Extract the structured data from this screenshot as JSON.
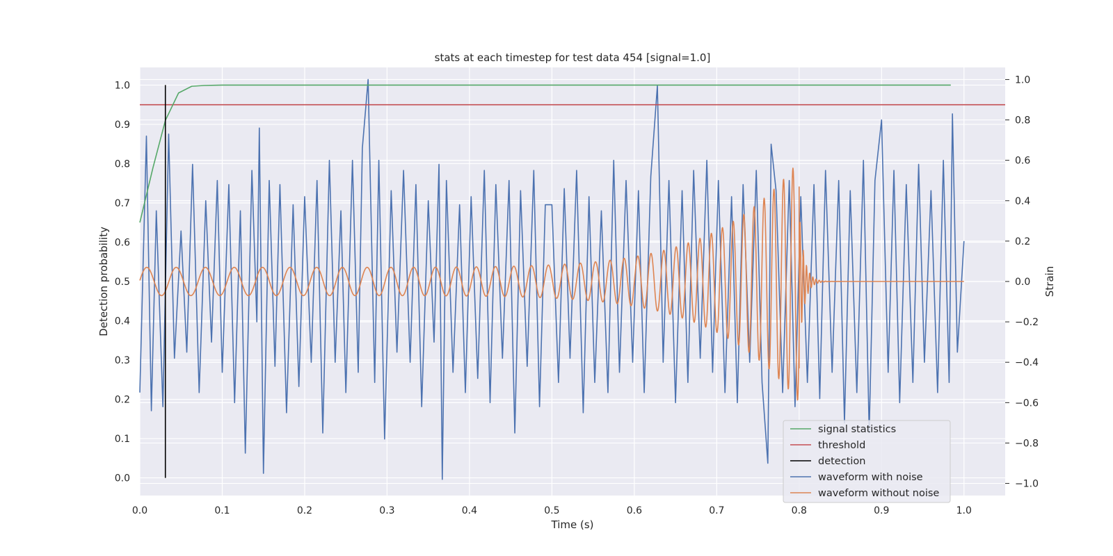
{
  "chart_data": {
    "type": "line",
    "title": "stats at each timestep for test data 454 [signal=1.0]",
    "xlabel": "Time (s)",
    "ylabel_left": "Detection probability",
    "ylabel_right": "Strain",
    "xlim": [
      0.0,
      1.05
    ],
    "ylim_left": [
      -0.045,
      1.045
    ],
    "ylim_right": [
      -1.06,
      1.06
    ],
    "x_ticks": [
      0.0,
      0.1,
      0.2,
      0.3,
      0.4,
      0.5,
      0.6,
      0.7,
      0.8,
      0.9,
      1.0
    ],
    "x_tick_labels": [
      "0.0",
      "0.1",
      "0.2",
      "0.3",
      "0.4",
      "0.5",
      "0.6",
      "0.7",
      "0.8",
      "0.9",
      "1.0"
    ],
    "y_left_ticks": [
      0.0,
      0.1,
      0.2,
      0.3,
      0.4,
      0.5,
      0.6,
      0.7,
      0.8,
      0.9,
      1.0
    ],
    "y_left_tick_labels": [
      "0.0",
      "0.1",
      "0.2",
      "0.3",
      "0.4",
      "0.5",
      "0.6",
      "0.7",
      "0.8",
      "0.9",
      "1.0"
    ],
    "y_right_ticks": [
      -1.0,
      -0.8,
      -0.6,
      -0.4,
      -0.2,
      0.0,
      0.2,
      0.4,
      0.6,
      0.8,
      1.0
    ],
    "y_right_tick_labels": [
      "−1.0",
      "−0.8",
      "−0.6",
      "−0.4",
      "−0.2",
      "0.0",
      "0.2",
      "0.4",
      "0.6",
      "0.8",
      "1.0"
    ],
    "grid": true,
    "legend_position": "lower right",
    "series": [
      {
        "name": "signal statistics",
        "axis": "left",
        "color": "#55a868",
        "x": [
          0.0,
          0.016,
          0.031,
          0.047,
          0.063,
          0.078,
          0.1,
          0.2,
          0.3,
          0.4,
          0.5,
          0.6,
          0.7,
          0.8,
          0.9,
          0.984
        ],
        "y": [
          0.65,
          0.79,
          0.91,
          0.98,
          0.997,
          0.999,
          1.0,
          1.0,
          1.0,
          1.0,
          1.0,
          1.0,
          1.0,
          1.0,
          1.0,
          1.0
        ]
      },
      {
        "name": "threshold",
        "axis": "left",
        "color": "#c44e52",
        "x": [
          0.0,
          1.05
        ],
        "y": [
          0.95,
          0.95
        ]
      },
      {
        "name": "detection",
        "axis": "left",
        "color": "#000000",
        "x": [
          0.031,
          0.031
        ],
        "y": [
          0.0,
          1.0
        ]
      },
      {
        "name": "waveform with noise",
        "axis": "right",
        "color": "#4c72b0",
        "x": [
          0.0,
          0.008,
          0.014,
          0.02,
          0.028,
          0.035,
          0.042,
          0.05,
          0.057,
          0.064,
          0.072,
          0.08,
          0.087,
          0.094,
          0.1,
          0.108,
          0.115,
          0.122,
          0.128,
          0.136,
          0.142,
          0.145,
          0.15,
          0.157,
          0.164,
          0.17,
          0.178,
          0.186,
          0.193,
          0.2,
          0.208,
          0.215,
          0.222,
          0.23,
          0.237,
          0.244,
          0.25,
          0.258,
          0.265,
          0.27,
          0.277,
          0.285,
          0.29,
          0.297,
          0.305,
          0.312,
          0.32,
          0.328,
          0.335,
          0.342,
          0.35,
          0.357,
          0.363,
          0.367,
          0.372,
          0.38,
          0.388,
          0.395,
          0.402,
          0.41,
          0.418,
          0.425,
          0.432,
          0.44,
          0.448,
          0.455,
          0.462,
          0.47,
          0.478,
          0.485,
          0.492,
          0.5,
          0.508,
          0.515,
          0.522,
          0.53,
          0.538,
          0.545,
          0.552,
          0.56,
          0.568,
          0.575,
          0.582,
          0.59,
          0.598,
          0.605,
          0.612,
          0.62,
          0.628,
          0.635,
          0.642,
          0.65,
          0.658,
          0.665,
          0.672,
          0.68,
          0.688,
          0.695,
          0.702,
          0.71,
          0.718,
          0.725,
          0.732,
          0.74,
          0.748,
          0.755,
          0.762,
          0.766,
          0.772,
          0.78,
          0.788,
          0.795,
          0.802,
          0.81,
          0.818,
          0.825,
          0.832,
          0.84,
          0.848,
          0.855,
          0.862,
          0.87,
          0.878,
          0.885,
          0.892,
          0.9,
          0.908,
          0.915,
          0.922,
          0.93,
          0.938,
          0.945,
          0.952,
          0.96,
          0.968,
          0.975,
          0.982,
          0.986,
          0.992,
          1.0
        ],
        "y": [
          -0.55,
          0.72,
          -0.64,
          0.35,
          -0.62,
          0.73,
          -0.38,
          0.25,
          -0.35,
          0.58,
          -0.55,
          0.4,
          -0.3,
          0.5,
          -0.45,
          0.48,
          -0.6,
          0.35,
          -0.85,
          0.55,
          -0.2,
          0.76,
          -0.95,
          0.5,
          -0.42,
          0.48,
          -0.65,
          0.38,
          -0.52,
          0.42,
          -0.4,
          0.5,
          -0.75,
          0.6,
          -0.4,
          0.35,
          -0.55,
          0.6,
          -0.45,
          0.66,
          1.0,
          -0.5,
          0.6,
          -0.78,
          0.45,
          -0.35,
          0.55,
          -0.4,
          0.48,
          -0.62,
          0.4,
          -0.3,
          0.58,
          -0.98,
          0.5,
          -0.45,
          0.38,
          -0.55,
          0.42,
          -0.48,
          0.55,
          -0.6,
          0.48,
          -0.38,
          0.5,
          -0.75,
          0.45,
          -0.42,
          0.55,
          -0.62,
          0.38,
          0.38,
          -0.5,
          0.46,
          -0.38,
          0.55,
          -0.65,
          0.42,
          -0.5,
          0.35,
          -0.55,
          0.6,
          -0.45,
          0.5,
          -0.4,
          0.45,
          -0.55,
          0.52,
          0.97,
          -0.4,
          0.5,
          -0.6,
          0.45,
          -0.5,
          0.55,
          -0.38,
          0.6,
          -0.45,
          0.5,
          -0.55,
          0.42,
          -0.6,
          0.48,
          -0.4,
          0.55,
          -0.5,
          -0.9,
          0.68,
          0.45,
          -0.55,
          0.5,
          -0.62,
          0.42,
          -0.5,
          0.48,
          -0.58,
          0.55,
          -0.45,
          0.5,
          -0.7,
          0.45,
          -0.55,
          0.6,
          -0.75,
          0.5,
          0.8,
          -0.45,
          0.55,
          -0.6,
          0.48,
          -0.5,
          0.58,
          -0.4,
          0.45,
          -0.55,
          0.6,
          -0.5,
          0.83,
          -0.35,
          0.2
        ]
      },
      {
        "name": "waveform without noise",
        "axis": "right",
        "color": "#dd8452",
        "chirp": {
          "t_merger": 0.8,
          "t_end": 1.0,
          "amplitude_start": 0.07,
          "amplitude_peak": 0.6,
          "cycles_per_second_start": 28,
          "cycles_per_second_end": 90
        },
        "peak_max": 0.47,
        "peak_min": -0.43
      }
    ],
    "legend": [
      "signal statistics",
      "threshold",
      "detection",
      "waveform with noise",
      "waveform without noise"
    ]
  }
}
